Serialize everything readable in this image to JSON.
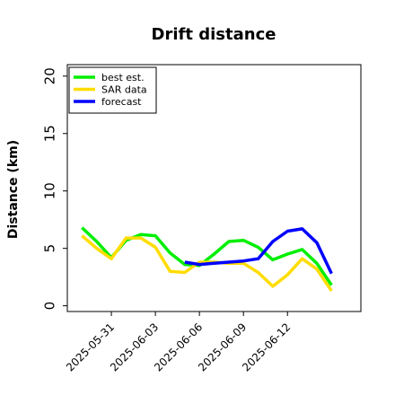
{
  "chart_data": {
    "type": "line",
    "title": "Drift distance",
    "xlabel": "",
    "ylabel": "Distance (km)",
    "ylim": [
      -0.5,
      21
    ],
    "yticks": [
      0,
      5,
      10,
      15,
      20
    ],
    "xticks": [
      "2025-05-31",
      "2025-06-03",
      "2025-06-06",
      "2025-06-09",
      "2025-06-12"
    ],
    "xlim": [
      "2025-05-28",
      "2025-06-17"
    ],
    "grid": false,
    "legend_position": "top-left",
    "series": [
      {
        "name": "best est.",
        "color": "#00ee00",
        "x": [
          "2025-05-29",
          "2025-05-30",
          "2025-05-31",
          "2025-06-01",
          "2025-06-02",
          "2025-06-03",
          "2025-06-04",
          "2025-06-05",
          "2025-06-06",
          "2025-06-07",
          "2025-06-08",
          "2025-06-09",
          "2025-06-10",
          "2025-06-11",
          "2025-06-12",
          "2025-06-13",
          "2025-06-14",
          "2025-06-15"
        ],
        "values": [
          6.8,
          5.6,
          4.2,
          5.7,
          6.2,
          6.1,
          4.6,
          3.6,
          3.5,
          4.5,
          5.6,
          5.7,
          5.1,
          4.0,
          4.5,
          4.9,
          3.7,
          1.8
        ]
      },
      {
        "name": "SAR data",
        "color": "#ffdd00",
        "x": [
          "2025-05-29",
          "2025-05-30",
          "2025-05-31",
          "2025-06-01",
          "2025-06-02",
          "2025-06-03",
          "2025-06-04",
          "2025-06-05",
          "2025-06-06",
          "2025-06-07",
          "2025-06-08",
          "2025-06-09",
          "2025-06-10",
          "2025-06-11",
          "2025-06-12",
          "2025-06-13",
          "2025-06-14",
          "2025-06-15"
        ],
        "values": [
          6.1,
          5.0,
          4.1,
          5.9,
          5.9,
          5.1,
          3.0,
          2.9,
          3.8,
          3.8,
          3.7,
          3.7,
          2.9,
          1.7,
          2.7,
          4.1,
          3.2,
          1.3
        ]
      },
      {
        "name": "forecast",
        "color": "#0000ff",
        "x": [
          "2025-06-05",
          "2025-06-06",
          "2025-06-07",
          "2025-06-08",
          "2025-06-09",
          "2025-06-10",
          "2025-06-11",
          "2025-06-12",
          "2025-06-13",
          "2025-06-14",
          "2025-06-15"
        ],
        "values": [
          3.8,
          3.6,
          3.7,
          3.8,
          3.9,
          4.1,
          5.6,
          6.5,
          6.7,
          5.5,
          2.8
        ]
      }
    ]
  }
}
